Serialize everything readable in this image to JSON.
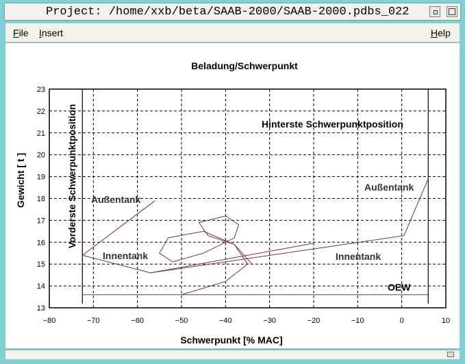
{
  "window": {
    "title": "Project: /home/xxb/beta/SAAB-2000/SAAB-2000.pdbs_022"
  },
  "menu": {
    "file": "File",
    "insert": "Insert",
    "help": "Help"
  },
  "chart_data": {
    "type": "line",
    "title": "Beladung/Schwerpunkt",
    "xlabel": "Schwerpunkt [% MAC]",
    "ylabel": "Gewicht [ t ]",
    "xlim": [
      -80,
      10
    ],
    "ylim": [
      13,
      23
    ],
    "x_ticks": [
      "−80",
      "−70",
      "−60",
      "−50",
      "−40",
      "−30",
      "−20",
      "−10",
      "0",
      "10"
    ],
    "y_ticks": [
      "13",
      "14",
      "15",
      "16",
      "17",
      "18",
      "19",
      "20",
      "21",
      "22",
      "23"
    ],
    "grid": true,
    "limits": [
      {
        "label": "Vorderste Schwerpunktposition",
        "x": -72.5
      },
      {
        "label": "Hinterste Schwerpunktposition",
        "x": 6
      }
    ],
    "annotations": [
      "Außentank",
      "Innentank",
      "Außentank",
      "Innentank",
      "OEW"
    ],
    "series": [
      {
        "points": [
          [
            -72.5,
            15.4
          ],
          [
            -57,
            14.6
          ],
          [
            0.5,
            16.3
          ],
          [
            6,
            18.9
          ]
        ]
      },
      {
        "points": [
          [
            -72.5,
            15.4
          ],
          [
            -56,
            17.9
          ]
        ]
      },
      {
        "points": [
          [
            -57,
            14.6
          ],
          [
            -20,
            15.95
          ]
        ]
      },
      {
        "points": [
          [
            -50,
            13.6
          ],
          [
            -40,
            14.2
          ],
          [
            -35,
            15.0
          ],
          [
            -38,
            15.9
          ],
          [
            -45,
            16.5
          ],
          [
            -53,
            16.2
          ],
          [
            -55,
            15.5
          ],
          [
            -52,
            15.1
          ],
          [
            -45,
            15.5
          ],
          [
            -38,
            16.2
          ],
          [
            -37,
            16.8
          ],
          [
            -40,
            17.2
          ],
          [
            -46,
            16.9
          ],
          [
            -44,
            16.3
          ],
          [
            -38,
            15.9
          ],
          [
            -34,
            15.0
          ]
        ]
      },
      {
        "points": [
          [
            -72.5,
            13.6
          ],
          [
            6,
            13.6
          ]
        ]
      }
    ]
  }
}
